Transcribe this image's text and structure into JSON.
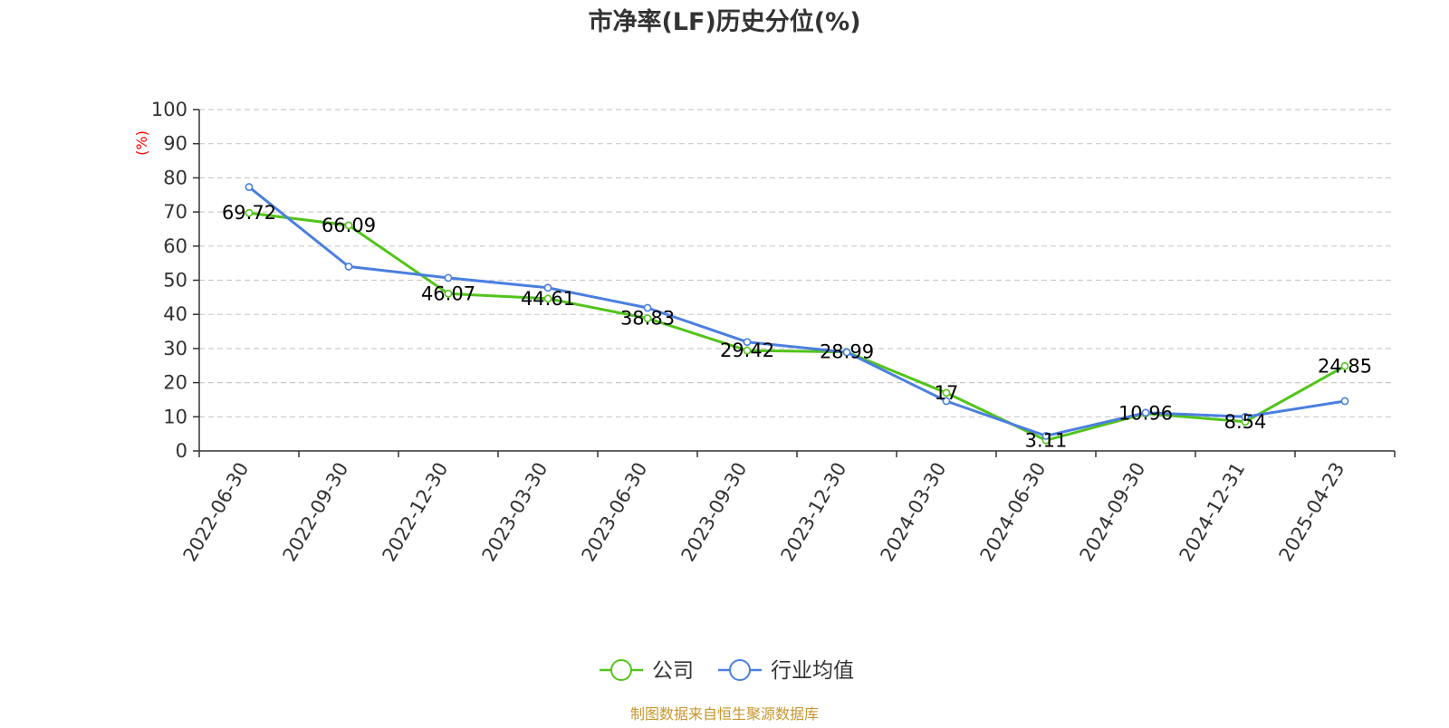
{
  "chart_data": {
    "type": "line",
    "title": "市净率(LF)历史分位(%)",
    "ylabel": "(%)",
    "xlabel": "",
    "categories": [
      "2022-06-30",
      "2022-09-30",
      "2022-12-30",
      "2023-03-30",
      "2023-06-30",
      "2023-09-30",
      "2023-12-30",
      "2024-03-30",
      "2024-06-30",
      "2024-09-30",
      "2024-12-31",
      "2025-04-23"
    ],
    "ylim": [
      0,
      100
    ],
    "yticks": [
      0,
      10,
      20,
      30,
      40,
      50,
      60,
      70,
      80,
      90,
      100
    ],
    "grid": true,
    "legend_position": "bottom-center",
    "series": [
      {
        "name": "公司",
        "color": "#52c41a",
        "values": [
          69.72,
          66.09,
          46.07,
          44.61,
          38.83,
          29.42,
          28.99,
          17,
          3.11,
          10.96,
          8.54,
          24.85
        ],
        "labels": [
          "69.72",
          "66.09",
          "46.07",
          "44.61",
          "38.83",
          "29.42",
          "28.99",
          "17",
          "3.11",
          "10.96",
          "8.54",
          "24.85"
        ]
      },
      {
        "name": "行业均值",
        "color": "#4a7fe0",
        "values": [
          77.3,
          54.0,
          50.7,
          47.8,
          41.9,
          31.9,
          28.9,
          14.6,
          4.4,
          11.2,
          10.0,
          14.6
        ]
      }
    ]
  },
  "source_note": "制图数据来自恒生聚源数据库"
}
